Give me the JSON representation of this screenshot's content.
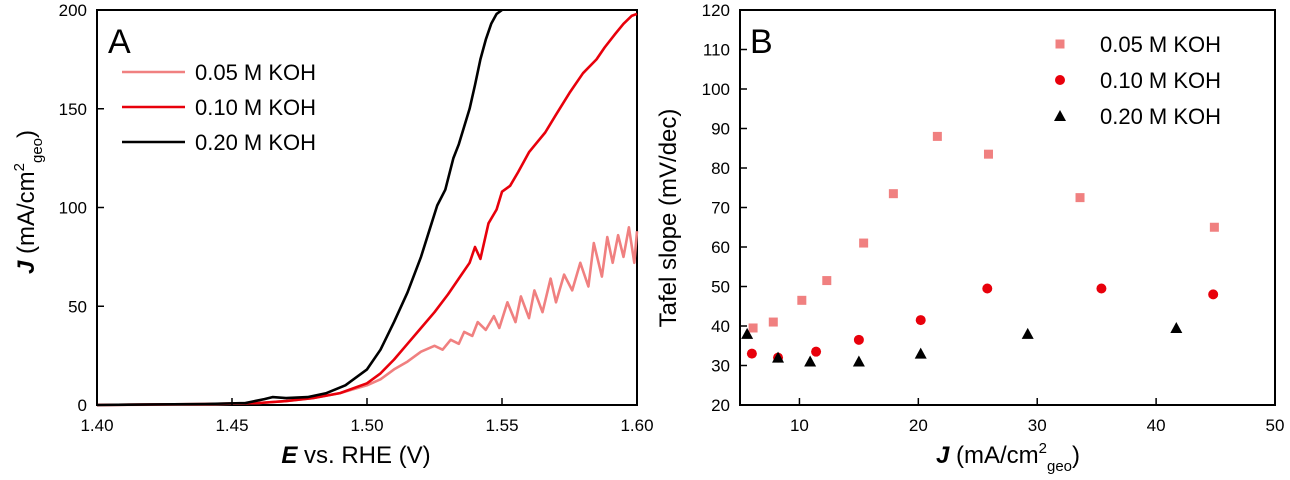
{
  "chart_data": [
    {
      "type": "line",
      "panel_label": "A",
      "xlabel": {
        "symbol": "E",
        "rest": " vs. RHE (V)"
      },
      "ylabel": {
        "symbol": "J",
        "rest": " (mA/cm",
        "sup": "2",
        "sub": "geo",
        "close": ")"
      },
      "xlim": [
        1.4,
        1.6
      ],
      "ylim": [
        0,
        200
      ],
      "x_ticks": [
        1.4,
        1.45,
        1.5,
        1.55,
        1.6
      ],
      "x_tick_labels": [
        "1.40",
        "1.45",
        "1.50",
        "1.55",
        "1.60"
      ],
      "y_ticks": [
        0,
        50,
        100,
        150,
        200
      ],
      "y_tick_labels": [
        "0",
        "50",
        "100",
        "150",
        "200"
      ],
      "legend_position": "top-left",
      "series": [
        {
          "name": "0.05 M KOH",
          "color": "#f08080",
          "x": [
            1.4,
            1.44,
            1.46,
            1.47,
            1.48,
            1.49,
            1.5,
            1.505,
            1.51,
            1.515,
            1.52,
            1.525,
            1.528,
            1.531,
            1.534,
            1.536,
            1.539,
            1.541,
            1.544,
            1.547,
            1.549,
            1.552,
            1.555,
            1.557,
            1.56,
            1.562,
            1.565,
            1.568,
            1.57,
            1.573,
            1.576,
            1.579,
            1.582,
            1.584,
            1.587,
            1.589,
            1.591,
            1.593,
            1.595,
            1.597,
            1.599,
            1.6
          ],
          "y": [
            0,
            0.3,
            1.0,
            2.0,
            3.5,
            6.0,
            10.0,
            13.0,
            18.0,
            22.0,
            27.0,
            30.0,
            28.0,
            33.0,
            31.0,
            37.0,
            35.0,
            42.0,
            38.0,
            45.0,
            39.0,
            52.0,
            42.0,
            55.0,
            44.0,
            58.0,
            47.0,
            64.0,
            52.0,
            66.0,
            58.0,
            72.0,
            60.0,
            82.0,
            65.0,
            85.0,
            72.0,
            86.0,
            75.0,
            90.0,
            72.0,
            88.0
          ]
        },
        {
          "name": "0.10 M KOH",
          "color": "#e8000b",
          "x": [
            1.4,
            1.44,
            1.46,
            1.47,
            1.48,
            1.49,
            1.5,
            1.505,
            1.51,
            1.515,
            1.52,
            1.525,
            1.53,
            1.535,
            1.538,
            1.54,
            1.542,
            1.545,
            1.548,
            1.55,
            1.553,
            1.556,
            1.56,
            1.563,
            1.566,
            1.57,
            1.575,
            1.58,
            1.585,
            1.588,
            1.592,
            1.595,
            1.598,
            1.6
          ],
          "y": [
            0,
            0.5,
            1.0,
            2.0,
            3.5,
            6.0,
            11.0,
            16.0,
            23.0,
            31.0,
            39.0,
            47.0,
            56.0,
            66.0,
            72.0,
            80.0,
            74.0,
            92.0,
            99.0,
            108.0,
            111.0,
            118.0,
            128.0,
            133.0,
            138.0,
            147.0,
            158.0,
            168.0,
            175.0,
            181.0,
            188.0,
            193.0,
            197.0,
            198.0
          ]
        },
        {
          "name": "0.20 M KOH",
          "color": "#000000",
          "x": [
            1.4,
            1.44,
            1.455,
            1.462,
            1.465,
            1.47,
            1.478,
            1.485,
            1.492,
            1.5,
            1.505,
            1.51,
            1.515,
            1.52,
            1.523,
            1.526,
            1.529,
            1.532,
            1.534,
            1.536,
            1.538,
            1.54,
            1.542,
            1.544,
            1.546,
            1.548,
            1.55
          ],
          "y": [
            0,
            0.5,
            1.0,
            3.0,
            4.0,
            3.5,
            4.0,
            6.0,
            10.0,
            18.0,
            28.0,
            42.0,
            57.0,
            75.0,
            88.0,
            101.0,
            109.0,
            125.0,
            132.0,
            141.0,
            150.0,
            162.0,
            175.0,
            185.0,
            193.0,
            198.0,
            200.0
          ]
        }
      ]
    },
    {
      "type": "scatter",
      "panel_label": "B",
      "xlabel": {
        "symbol": "J",
        "rest": " (mA/cm",
        "sup": "2",
        "sub": "geo",
        "close": ")"
      },
      "ylabel": "Tafel slope (mV/dec)",
      "xlim": [
        5,
        50
      ],
      "ylim": [
        20,
        120
      ],
      "x_ticks": [
        10,
        20,
        30,
        40,
        50
      ],
      "x_tick_labels": [
        "10",
        "20",
        "30",
        "40",
        "50"
      ],
      "y_ticks": [
        20,
        30,
        40,
        50,
        60,
        70,
        80,
        90,
        100,
        110,
        120
      ],
      "y_tick_labels": [
        "20",
        "30",
        "40",
        "50",
        "60",
        "70",
        "80",
        "90",
        "100",
        "110",
        "120"
      ],
      "legend_position": "top-right",
      "series": [
        {
          "name": "0.05 M KOH",
          "color": "#f08080",
          "marker": "square",
          "x": [
            6.1,
            7.8,
            10.2,
            12.3,
            15.4,
            17.9,
            21.6,
            25.9,
            33.6,
            44.9
          ],
          "y": [
            39.5,
            41.0,
            46.5,
            51.5,
            61.0,
            73.5,
            88.0,
            83.5,
            72.5,
            65.0
          ]
        },
        {
          "name": "0.10 M KOH",
          "color": "#e8000b",
          "marker": "circle",
          "x": [
            6.0,
            8.2,
            11.4,
            15.0,
            20.2,
            25.8,
            35.4,
            44.8
          ],
          "y": [
            33.0,
            32.0,
            33.5,
            36.5,
            41.5,
            49.5,
            49.5,
            48.0
          ]
        },
        {
          "name": "0.20 M KOH",
          "color": "#000000",
          "marker": "triangle",
          "x": [
            5.6,
            8.2,
            10.9,
            15.0,
            20.2,
            29.2,
            41.7
          ],
          "y": [
            38.0,
            32.0,
            31.0,
            31.0,
            33.0,
            38.0,
            39.5
          ]
        }
      ]
    }
  ]
}
